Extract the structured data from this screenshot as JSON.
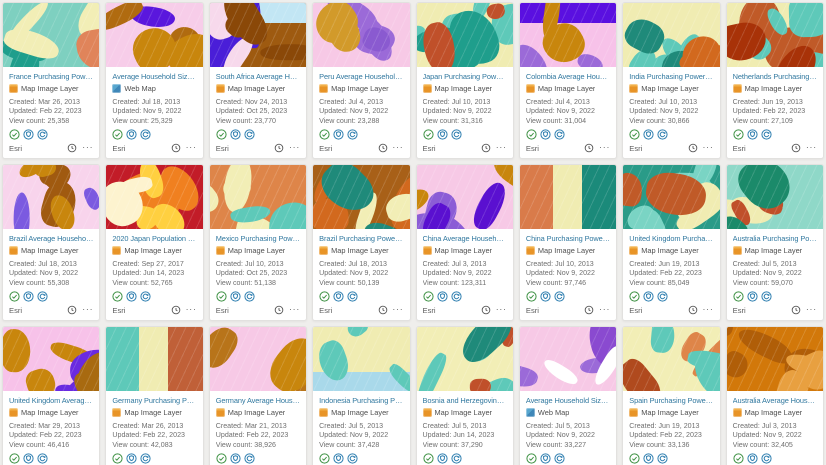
{
  "ui": {
    "created_label": "Created:",
    "updated_label": "Updated:",
    "view_count_label": "View count:",
    "overflow_glyph": "···",
    "colors": {
      "link": "#31789f",
      "authoritative_green": "#3d9143",
      "badge_blue": "#2f7fb0",
      "map_image_layer_orange": "#e89427",
      "web_map_blue": "#3f87b8"
    },
    "badges": [
      {
        "name": "authoritative-badge-icon",
        "color": "#3d9143"
      },
      {
        "name": "shield-badge-icon",
        "color": "#2f7fb0"
      },
      {
        "name": "refresh-badge-icon",
        "color": "#2f7fb0"
      }
    ]
  },
  "cards": [
    {
      "title": "France Purchasing Power per Ca...",
      "type": "Map Image Layer",
      "created": "Mar 26, 2013",
      "updated": "Feb 22, 2023",
      "views": "25,358",
      "owner": "Esri",
      "thumb": {
        "bg": "#7ed0c0",
        "patches": [
          {
            "c": "#1f9e8c",
            "blobs": 4
          },
          {
            "c": "#f2eeb6",
            "blobs": 4
          },
          {
            "c": "#e0845a",
            "blobs": 1
          }
        ]
      }
    },
    {
      "title": "Average Household Size in Brazil",
      "type": "Web Map",
      "created": "Jul 18, 2013",
      "updated": "Nov 9, 2022",
      "views": "25,329",
      "owner": "Esri",
      "thumb": {
        "bg": "#f7cde9",
        "patches": [
          {
            "c": "#5a17dd",
            "blobs": 1
          },
          {
            "c": "#b06b10",
            "blobs": 2
          },
          {
            "c": "#c8860d",
            "blobs": 3
          }
        ]
      }
    },
    {
      "title": "South Africa Average Household...",
      "type": "Map Image Layer",
      "created": "Nov 24, 2013",
      "updated": "Oct 25, 2023",
      "views": "23,770",
      "owner": "Esri",
      "thumb": {
        "bg": "#9e5a10",
        "patches": [
          {
            "c": "#c2e6f4",
            "band": "top"
          },
          {
            "c": "#4a1ed8",
            "blobs": 3
          },
          {
            "c": "#f7d9ec",
            "blobs": 2
          },
          {
            "c": "#8a4808",
            "blobs": 3
          }
        ]
      }
    },
    {
      "title": "Peru Average Household Size",
      "type": "Map Image Layer",
      "created": "Jul 4, 2013",
      "updated": "Nov 9, 2022",
      "views": "23,288",
      "owner": "Esri",
      "thumb": {
        "bg": "#f7c9e6",
        "patches": [
          {
            "c": "#9b6ad8",
            "blobs": 3
          },
          {
            "c": "#d29a2a",
            "blobs": 2
          },
          {
            "c": "#8a5ad0",
            "blobs": 1
          }
        ]
      }
    },
    {
      "title": "Japan Purchasing Power per Ca...",
      "type": "Map Image Layer",
      "created": "Jul 10, 2013",
      "updated": "Nov 9, 2022",
      "views": "31,316",
      "owner": "Esri",
      "thumb": {
        "bg": "#f0ecb2",
        "patches": [
          {
            "c": "#5ec9b9",
            "blobs": 5
          },
          {
            "c": "#1f9e8c",
            "blobs": 3
          },
          {
            "c": "#c0502a",
            "blobs": 2
          }
        ]
      }
    },
    {
      "title": "Colombia Average Household Size",
      "type": "Map Image Layer",
      "created": "Jul 4, 2013",
      "updated": "Nov 9, 2022",
      "views": "31,004",
      "owner": "Esri",
      "thumb": {
        "bg": "#f7c2e9",
        "patches": [
          {
            "c": "#5a10e0",
            "band": "top"
          },
          {
            "c": "#9b6ad8",
            "blobs": 2
          },
          {
            "c": "#c8860d",
            "blobs": 2
          }
        ]
      }
    },
    {
      "title": "India Purchasing Power per Capita",
      "type": "Map Image Layer",
      "created": "Jul 10, 2013",
      "updated": "Nov 9, 2022",
      "views": "30,866",
      "owner": "Esri",
      "thumb": {
        "bg": "#f0ecb2",
        "patches": [
          {
            "c": "#5ec9b9",
            "blobs": 5
          },
          {
            "c": "#1f8a7a",
            "blobs": 2
          },
          {
            "c": "#d2691e",
            "blobs": 2
          }
        ]
      }
    },
    {
      "title": "Netherlands Purchasing Power p...",
      "type": "Map Image Layer",
      "created": "Jun 19, 2013",
      "updated": "Feb 22, 2023",
      "views": "27,109",
      "owner": "Esri",
      "thumb": {
        "bg": "#f0ecb2",
        "patches": [
          {
            "c": "#c05a28",
            "blobs": 4
          },
          {
            "c": "#5ec9b9",
            "blobs": 4
          },
          {
            "c": "#a83208",
            "blobs": 2
          }
        ]
      }
    },
    {
      "title": "Brazil Average Household Size",
      "type": "Map Image Layer",
      "created": "Jul 18, 2013",
      "updated": "Nov 9, 2022",
      "views": "55,308",
      "owner": "Esri",
      "thumb": {
        "bg": "#f8d4ec",
        "patches": [
          {
            "c": "#a05a10",
            "blobs": 3
          },
          {
            "c": "#c8860d",
            "blobs": 3
          },
          {
            "c": "#7b5ae0",
            "blobs": 2
          }
        ]
      }
    },
    {
      "title": "2020 Japan Population Density",
      "type": "Map Image Layer",
      "created": "Sep 27, 2017",
      "updated": "Jun 14, 2023",
      "views": "52,765",
      "owner": "Esri",
      "thumb": {
        "bg": "#c21c28",
        "patches": [
          {
            "c": "#f08020",
            "blobs": 5
          },
          {
            "c": "#ffd040",
            "blobs": 4
          },
          {
            "c": "#fdf3cf",
            "blobs": 2
          }
        ]
      }
    },
    {
      "title": "Mexico Purchasing Power per Ca...",
      "type": "Map Image Layer",
      "created": "Jul 10, 2013",
      "updated": "Oct 25, 2023",
      "views": "51,138",
      "owner": "Esri",
      "thumb": {
        "bg": "#de8549",
        "patches": [
          {
            "c": "#f2eeb6",
            "blobs": 4
          },
          {
            "c": "#5ec9b9",
            "blobs": 2
          }
        ]
      }
    },
    {
      "title": "Brazil Purchasing Power per Capita",
      "type": "Map Image Layer",
      "created": "Jul 18, 2013",
      "updated": "Nov 9, 2022",
      "views": "50,139",
      "owner": "Esri",
      "thumb": {
        "bg": "#a86018",
        "patches": [
          {
            "c": "#d2691e",
            "blobs": 3
          },
          {
            "c": "#f2eeb6",
            "blobs": 3
          },
          {
            "c": "#1f8a7a",
            "blobs": 2
          }
        ]
      }
    },
    {
      "title": "China Average Household Size",
      "type": "Map Image Layer",
      "created": "Jul 3, 2013",
      "updated": "Nov 9, 2022",
      "views": "123,311",
      "owner": "Esri",
      "thumb": {
        "bg": "#f7c9e6",
        "patches": [
          {
            "c": "#8b5cd6",
            "blobs": 4
          },
          {
            "c": "#5a10d0",
            "blobs": 2
          },
          {
            "c": "#c8860d",
            "blobs": 2
          }
        ]
      }
    },
    {
      "title": "China Purchasing Power per Cap...",
      "type": "Map Image Layer",
      "created": "Jul 10, 2013",
      "updated": "Nov 9, 2022",
      "views": "97,746",
      "owner": "Esri",
      "thumb": {
        "bg": "#f0ecb2",
        "patches": [
          {
            "c": "#d97b4a",
            "band": "left"
          },
          {
            "c": "#1b8a7a",
            "band": "right"
          }
        ]
      }
    },
    {
      "title": "United Kingdom Purchasing Pow...",
      "type": "Map Image Layer",
      "created": "Jun 19, 2013",
      "updated": "Feb 22, 2023",
      "views": "85,049",
      "owner": "Esri",
      "thumb": {
        "bg": "#2a9b88",
        "patches": [
          {
            "c": "#7ad4c4",
            "blobs": 4
          },
          {
            "c": "#f0ecb2",
            "blobs": 3
          },
          {
            "c": "#c05a28",
            "blobs": 2
          }
        ]
      }
    },
    {
      "title": "Australia Purchasing Power per ...",
      "type": "Map Image Layer",
      "created": "Jul 5, 2013",
      "updated": "Nov 9, 2022",
      "views": "59,070",
      "owner": "Esri",
      "thumb": {
        "bg": "#8fd8c8",
        "patches": [
          {
            "c": "#f0ecb2",
            "blobs": 4
          },
          {
            "c": "#c0502a",
            "blobs": 3
          },
          {
            "c": "#1b8a6a",
            "blobs": 2
          }
        ]
      }
    },
    {
      "title": "United Kingdom Average House...",
      "type": "Map Image Layer",
      "created": "Mar 29, 2013",
      "updated": "Feb 22, 2023",
      "views": "46,416",
      "owner": "Esri",
      "thumb": {
        "bg": "#f7c2e9",
        "patches": [
          {
            "c": "#c8860d",
            "blobs": 3
          },
          {
            "c": "#6a2ae0",
            "blobs": 3
          },
          {
            "c": "#a86a10",
            "blobs": 2
          }
        ]
      }
    },
    {
      "title": "Germany Purchasing Power per ...",
      "type": "Map Image Layer",
      "created": "Mar 26, 2013",
      "updated": "Feb 22, 2023",
      "views": "42,083",
      "owner": "Esri",
      "thumb": {
        "bg": "#f0ecb2",
        "patches": [
          {
            "c": "#5ec9b9",
            "band": "left"
          },
          {
            "c": "#c06038",
            "band": "right"
          }
        ]
      }
    },
    {
      "title": "Germany Average Household Size",
      "type": "Map Image Layer",
      "created": "Mar 21, 2013",
      "updated": "Feb 22, 2023",
      "views": "38,926",
      "owner": "Esri",
      "thumb": {
        "bg": "#f7c9e6",
        "patches": [
          {
            "c": "#b8741a",
            "blobs": 2
          },
          {
            "c": "#c8860d",
            "blobs": 1
          }
        ]
      }
    },
    {
      "title": "Indonesia Purchasing Power per ...",
      "type": "Map Image Layer",
      "created": "Jul 5, 2013",
      "updated": "Nov 9, 2022",
      "views": "37,428",
      "owner": "Esri",
      "thumb": {
        "bg": "#f0ecb2",
        "patches": [
          {
            "c": "#a9d9ea",
            "band": "bottom"
          },
          {
            "c": "#5ec9b9",
            "blobs": 3
          }
        ]
      }
    },
    {
      "title": "Bosnia and Herzegovina Purchas...",
      "type": "Map Image Layer",
      "created": "Jul 5, 2013",
      "updated": "Jun 14, 2023",
      "views": "37,290",
      "owner": "Esri",
      "thumb": {
        "bg": "#f2eeb6",
        "patches": [
          {
            "c": "#5ec9b9",
            "blobs": 3
          },
          {
            "c": "#c0502a",
            "blobs": 2
          },
          {
            "c": "#1f8a7a",
            "blobs": 1
          }
        ]
      }
    },
    {
      "title": "Average Household Size in India",
      "type": "Web Map",
      "created": "Jul 5, 2013",
      "updated": "Nov 9, 2022",
      "views": "33,227",
      "owner": "Esri",
      "thumb": {
        "bg": "#f7c9e6",
        "patches": [
          {
            "c": "#9b6ad8",
            "blobs": 2
          },
          {
            "c": "#8a4ad0",
            "blobs": 1
          },
          {
            "c": "#ffffff",
            "blobs": 2
          }
        ]
      }
    },
    {
      "title": "Spain Purchasing Power per Capita",
      "type": "Map Image Layer",
      "created": "Jun 19, 2013",
      "updated": "Feb 22, 2023",
      "views": "33,136",
      "owner": "Esri",
      "thumb": {
        "bg": "#f2eeb6",
        "patches": [
          {
            "c": "#de8549",
            "blobs": 3
          },
          {
            "c": "#5ec9b9",
            "blobs": 3
          },
          {
            "c": "#b04a1e",
            "blobs": 1
          }
        ]
      }
    },
    {
      "title": "Australia Average Household Size",
      "type": "Map Image Layer",
      "created": "Jul 3, 2013",
      "updated": "Nov 9, 2022",
      "views": "32,405",
      "owner": "Esri",
      "thumb": {
        "bg": "#d2780a",
        "patches": [
          {
            "c": "#b05e08",
            "blobs": 4
          },
          {
            "c": "#e8a040",
            "blobs": 3
          }
        ]
      }
    }
  ]
}
